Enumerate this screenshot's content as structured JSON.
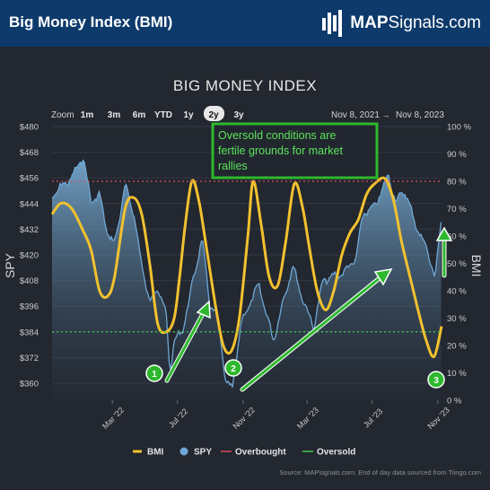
{
  "header": {
    "title": "Big Money Index (BMI)",
    "brand_bold": "MAP",
    "brand_rest": "Signals.com",
    "brand_icon": "bar-chart-logo-icon"
  },
  "toolbar": {
    "zoom_label": "Zoom",
    "ranges": [
      "1m",
      "3m",
      "6m",
      "YTD",
      "1y",
      "2y",
      "3y"
    ],
    "selected_range": "2y",
    "date_from": "Nov 8, 2021",
    "date_arrow": "→",
    "date_to": "Nov 8, 2023"
  },
  "annotation": {
    "text_lines": [
      "Oversold conditions are",
      "fertile grounds for market",
      "rallies"
    ],
    "markers": [
      "1",
      "2",
      "3"
    ]
  },
  "source_note": "Source: MAPsignals.com. End of day data sourced from Tiingo.com",
  "colors": {
    "bmi": "#f2c12e",
    "spy": "#6fa8d6",
    "overbought": "#d94f5c",
    "oversold": "#3ecf4a",
    "annotation": "#2eb82e",
    "header": "#0d3a6b"
  },
  "chart_data": {
    "type": "line",
    "title": "BIG MONEY INDEX",
    "left_axis": {
      "label": "SPY",
      "min": 352,
      "max": 480,
      "ticks": [
        "$360",
        "$372",
        "$384",
        "$396",
        "$408",
        "$420",
        "$432",
        "$444",
        "$456",
        "$468",
        "$480"
      ]
    },
    "right_axis": {
      "label": "BMI",
      "min": 0,
      "max": 100,
      "ticks": [
        "0 %",
        "10 %",
        "20 %",
        "30 %",
        "40 %",
        "50 %",
        "60 %",
        "70 %",
        "80 %",
        "90 %",
        "100 %"
      ]
    },
    "x_axis": {
      "start": "2021-11-08",
      "end": "2023-11-08",
      "ticks": [
        "Mar '22",
        "Jul '22",
        "Nov '22",
        "Mar '23",
        "Jul '23",
        "Nov '23"
      ]
    },
    "series": [
      {
        "name": "BMI",
        "axis": "right",
        "points": [
          [
            "2021-11-08",
            68
          ],
          [
            "2021-11-25",
            72
          ],
          [
            "2021-12-15",
            70
          ],
          [
            "2022-01-05",
            62
          ],
          [
            "2022-01-20",
            55
          ],
          [
            "2022-02-05",
            40
          ],
          [
            "2022-02-20",
            38
          ],
          [
            "2022-03-05",
            45
          ],
          [
            "2022-03-25",
            70
          ],
          [
            "2022-04-10",
            74
          ],
          [
            "2022-04-25",
            68
          ],
          [
            "2022-05-10",
            50
          ],
          [
            "2022-05-25",
            28
          ],
          [
            "2022-06-10",
            25
          ],
          [
            "2022-06-25",
            30
          ],
          [
            "2022-07-05",
            45
          ],
          [
            "2022-07-15",
            63
          ],
          [
            "2022-07-28",
            80
          ],
          [
            "2022-08-10",
            73
          ],
          [
            "2022-08-25",
            55
          ],
          [
            "2022-09-10",
            35
          ],
          [
            "2022-09-25",
            20
          ],
          [
            "2022-10-10",
            18
          ],
          [
            "2022-10-25",
            30
          ],
          [
            "2022-11-10",
            60
          ],
          [
            "2022-11-20",
            80
          ],
          [
            "2022-12-05",
            64
          ],
          [
            "2022-12-20",
            45
          ],
          [
            "2023-01-05",
            42
          ],
          [
            "2023-01-20",
            58
          ],
          [
            "2023-02-05",
            79
          ],
          [
            "2023-02-20",
            71
          ],
          [
            "2023-03-05",
            56
          ],
          [
            "2023-03-20",
            40
          ],
          [
            "2023-04-05",
            33
          ],
          [
            "2023-04-20",
            40
          ],
          [
            "2023-05-05",
            53
          ],
          [
            "2023-05-20",
            61
          ],
          [
            "2023-06-05",
            66
          ],
          [
            "2023-06-20",
            75
          ],
          [
            "2023-07-05",
            79
          ],
          [
            "2023-07-25",
            81
          ],
          [
            "2023-08-10",
            73
          ],
          [
            "2023-08-25",
            58
          ],
          [
            "2023-09-10",
            45
          ],
          [
            "2023-09-25",
            33
          ],
          [
            "2023-10-10",
            22
          ],
          [
            "2023-10-25",
            16
          ],
          [
            "2023-11-08",
            27
          ]
        ]
      },
      {
        "name": "SPY",
        "axis": "left",
        "points": [
          [
            "2021-11-08",
            447
          ],
          [
            "2021-11-25",
            452
          ],
          [
            "2021-12-15",
            456
          ],
          [
            "2022-01-05",
            466
          ],
          [
            "2022-01-20",
            445
          ],
          [
            "2022-02-05",
            448
          ],
          [
            "2022-02-20",
            430
          ],
          [
            "2022-03-05",
            425
          ],
          [
            "2022-03-25",
            452
          ],
          [
            "2022-04-10",
            440
          ],
          [
            "2022-04-25",
            415
          ],
          [
            "2022-05-10",
            398
          ],
          [
            "2022-05-25",
            405
          ],
          [
            "2022-06-10",
            392
          ],
          [
            "2022-06-17",
            365
          ],
          [
            "2022-06-25",
            380
          ],
          [
            "2022-07-10",
            384
          ],
          [
            "2022-07-28",
            405
          ],
          [
            "2022-08-16",
            428
          ],
          [
            "2022-08-30",
            398
          ],
          [
            "2022-09-15",
            390
          ],
          [
            "2022-09-30",
            360
          ],
          [
            "2022-10-12",
            357
          ],
          [
            "2022-10-28",
            388
          ],
          [
            "2022-11-15",
            398
          ],
          [
            "2022-12-01",
            406
          ],
          [
            "2022-12-15",
            392
          ],
          [
            "2022-12-28",
            380
          ],
          [
            "2023-01-15",
            398
          ],
          [
            "2023-02-02",
            415
          ],
          [
            "2023-02-20",
            400
          ],
          [
            "2023-03-13",
            386
          ],
          [
            "2023-03-31",
            408
          ],
          [
            "2023-04-20",
            410
          ],
          [
            "2023-05-10",
            412
          ],
          [
            "2023-05-31",
            418
          ],
          [
            "2023-06-15",
            440
          ],
          [
            "2023-07-05",
            442
          ],
          [
            "2023-07-31",
            457
          ],
          [
            "2023-08-15",
            445
          ],
          [
            "2023-09-01",
            450
          ],
          [
            "2023-09-20",
            434
          ],
          [
            "2023-10-05",
            427
          ],
          [
            "2023-10-27",
            410
          ],
          [
            "2023-11-08",
            437
          ]
        ]
      }
    ],
    "reference_lines": [
      {
        "name": "Overbought",
        "axis": "right",
        "value": 80
      },
      {
        "name": "Oversold",
        "axis": "right",
        "value": 25
      }
    ],
    "legend": {
      "position": "bottom",
      "items": [
        "BMI",
        "SPY",
        "Overbought",
        "Oversold"
      ]
    },
    "grid": true
  }
}
